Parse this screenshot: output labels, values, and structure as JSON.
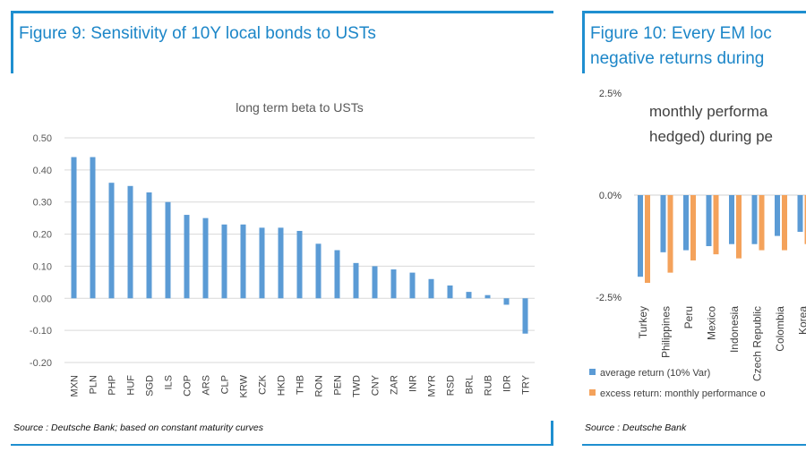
{
  "figure9": {
    "title": "Figure 9: Sensitivity of 10Y local bonds to USTs",
    "source": "Source : Deutsche Bank; based on constant maturity curves"
  },
  "figure10": {
    "title_line1": "Figure 10: Every EM loc",
    "title_line2": "negative returns during",
    "source": "Source : Deutsche Bank"
  },
  "colors": {
    "frame": "#1f8fd0",
    "title": "#1c86c8",
    "bar_blue": "#5b9bd5",
    "bar_orange": "#f4a25b",
    "grid": "#d9d9d9"
  },
  "chart_data": [
    {
      "type": "bar",
      "title": "long term beta to USTs",
      "xlabel": "",
      "ylabel": "",
      "ylim": [
        -0.2,
        0.5
      ],
      "yticks": [
        0.5,
        0.4,
        0.3,
        0.2,
        0.1,
        0.0,
        -0.1,
        -0.2
      ],
      "ytick_labels": [
        "0.50",
        "0.40",
        "0.30",
        "0.20",
        "0.10",
        "0.00",
        "-0.10",
        "-0.20"
      ],
      "grid": true,
      "categories": [
        "MXN",
        "PLN",
        "PHP",
        "HUF",
        "SGD",
        "ILS",
        "COP",
        "ARS",
        "CLP",
        "KRW",
        "CZK",
        "HKD",
        "THB",
        "RON",
        "PEN",
        "TWD",
        "CNY",
        "ZAR",
        "INR",
        "MYR",
        "RSD",
        "BRL",
        "RUB",
        "IDR",
        "TRY"
      ],
      "values": [
        0.44,
        0.44,
        0.36,
        0.35,
        0.33,
        0.3,
        0.26,
        0.25,
        0.23,
        0.23,
        0.22,
        0.22,
        0.21,
        0.17,
        0.15,
        0.11,
        0.1,
        0.09,
        0.08,
        0.06,
        0.04,
        0.02,
        0.01,
        -0.02,
        -0.11
      ]
    },
    {
      "type": "bar",
      "title": "monthly performa hedged) during pe",
      "title_lines": [
        "monthly performa",
        "hedged) during pe"
      ],
      "xlabel": "",
      "ylabel": "",
      "ylim": [
        -2.5,
        2.5
      ],
      "yticks": [
        2.5,
        0.0,
        -2.5
      ],
      "ytick_labels": [
        "2.5%",
        "0.0%",
        "-2.5%"
      ],
      "grid": false,
      "legend_position": "bottom",
      "categories": [
        "Turkey",
        "Philippines",
        "Peru",
        "Mexico",
        "Indonesia",
        "Czech Republic",
        "Colombia",
        "Korea"
      ],
      "series": [
        {
          "name": "average return (10% Var)",
          "values": [
            -2.0,
            -1.4,
            -1.35,
            -1.25,
            -1.2,
            -1.2,
            -1.0,
            -0.9
          ]
        },
        {
          "name": "excess return: monthly performance o",
          "values": [
            -2.15,
            -1.9,
            -1.6,
            -1.45,
            -1.55,
            -1.35,
            -1.35,
            -1.2
          ]
        }
      ]
    }
  ]
}
